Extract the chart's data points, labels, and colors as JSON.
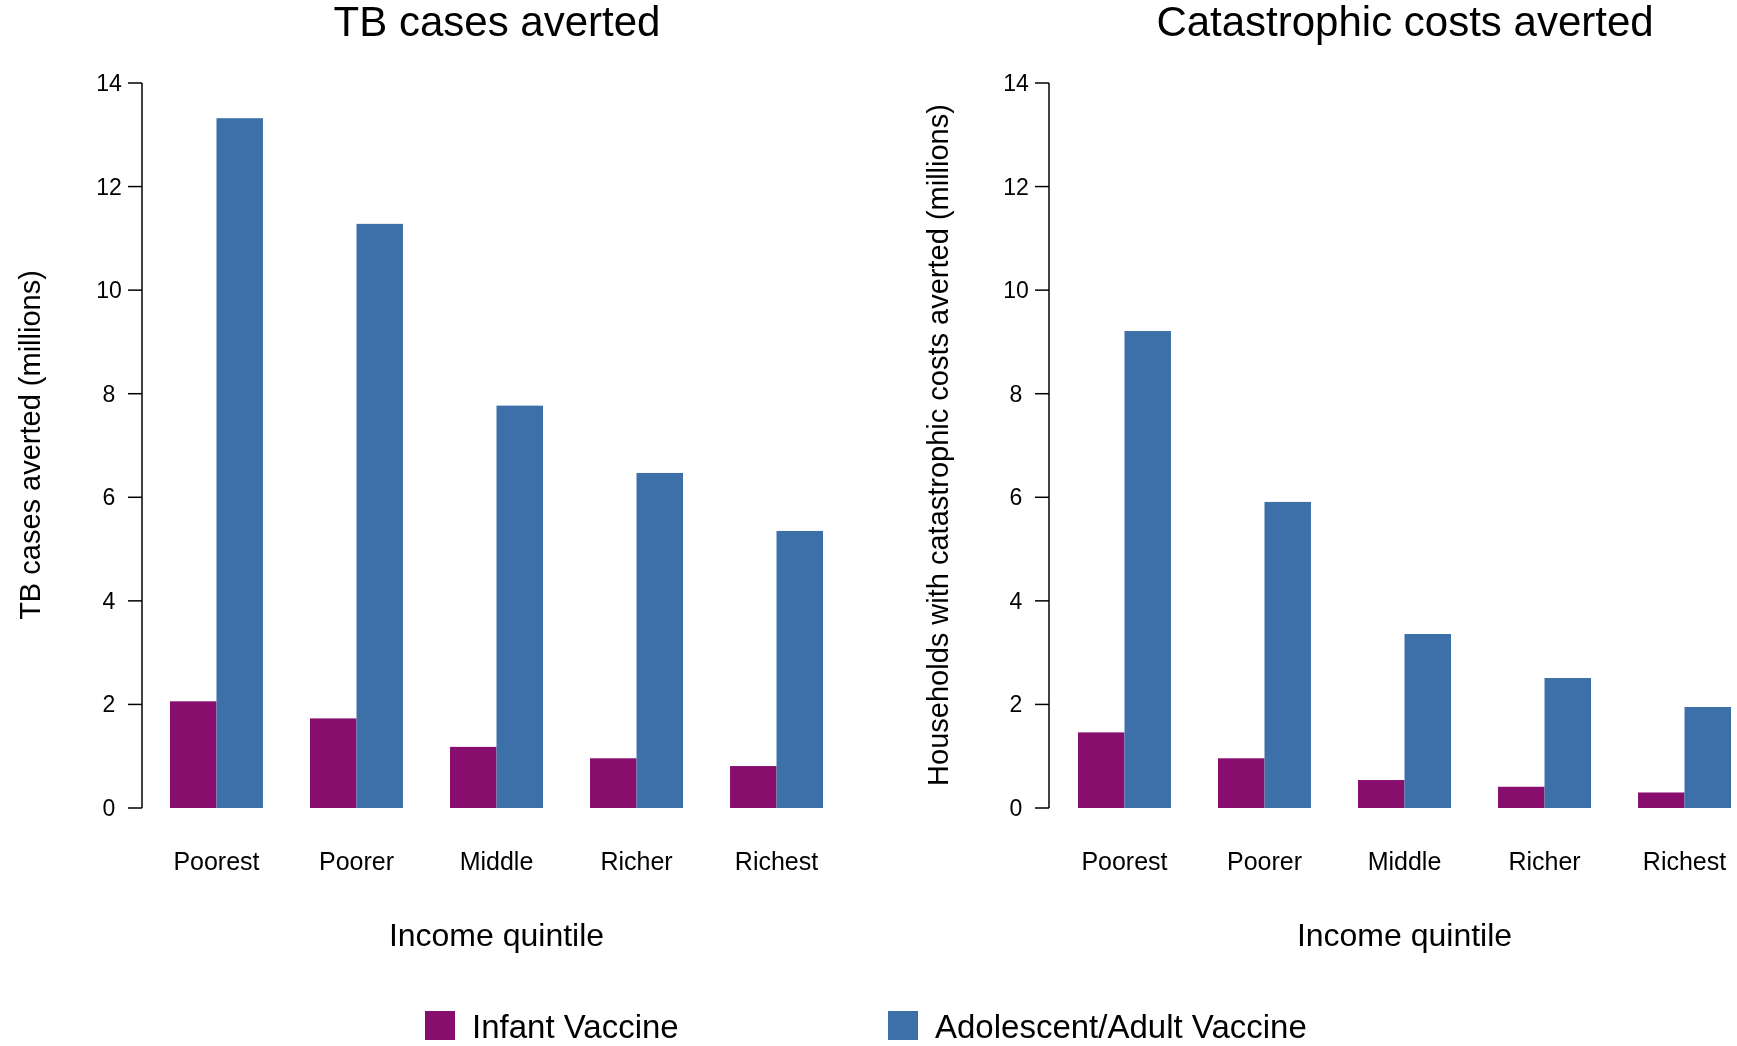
{
  "chart_data": [
    {
      "type": "bar",
      "title": "TB cases averted",
      "xlabel": "Income quintile",
      "ylabel": "TB cases averted (millions)",
      "categories": [
        "Poorest",
        "Poorer",
        "Middle",
        "Richer",
        "Richest"
      ],
      "series": [
        {
          "name": "Infant Vaccine",
          "color": "#880e6e",
          "values": [
            2.06,
            1.73,
            1.18,
            0.96,
            0.81
          ]
        },
        {
          "name": "Adolescent/Adult Vaccine",
          "color": "#3d70a8",
          "values": [
            13.32,
            11.28,
            7.77,
            6.47,
            5.35
          ]
        }
      ],
      "ylim": [
        0,
        14
      ],
      "yticks": [
        0,
        2,
        4,
        6,
        8,
        10,
        12,
        14
      ],
      "legend": "bottom",
      "grid": false
    },
    {
      "type": "bar",
      "title": "Catastrophic costs averted",
      "xlabel": "Income quintile",
      "ylabel": "Households with catastrophic costs averted (millions)",
      "categories": [
        "Poorest",
        "Poorer",
        "Middle",
        "Richer",
        "Richest"
      ],
      "series": [
        {
          "color": "#880e6e",
          "values": [
            1.46,
            0.96,
            0.54,
            0.41,
            0.3
          ]
        },
        {
          "color": "#3d70a8",
          "values": [
            9.21,
            5.91,
            3.36,
            2.51,
            1.95
          ]
        }
      ],
      "ylim": [
        0,
        14
      ],
      "yticks": [
        0,
        2,
        4,
        6,
        8,
        10,
        12,
        14
      ],
      "grid": false
    }
  ]
}
